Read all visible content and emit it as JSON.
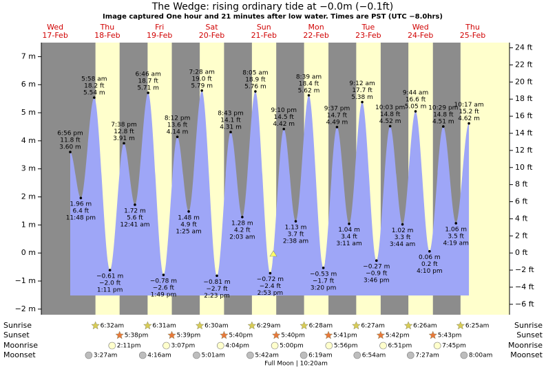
{
  "chart_data": {
    "type": "tide",
    "title": "The Wedge: rising  ordinary tide at −0.0m (−0.1ft)",
    "subtitle": "Image captured One hour and 21 minutes after low water. Times are PST (UTC −8.0hrs)",
    "ylim": [
      -2.2,
      7.5
    ],
    "yticks": [
      {
        "value": -2,
        "label": "−2 m"
      },
      {
        "value": -1,
        "label": "−1 m"
      },
      {
        "value": 0,
        "label": "0 m"
      },
      {
        "value": 1,
        "label": "1 m"
      },
      {
        "value": 2,
        "label": "2 m"
      },
      {
        "value": 3,
        "label": "3 m"
      },
      {
        "value": 4,
        "label": "4 m"
      },
      {
        "value": 5,
        "label": "5 m"
      },
      {
        "value": 6,
        "label": "6 m"
      },
      {
        "value": 7,
        "label": "7 m"
      }
    ],
    "y2lim": [
      -7.22,
      24.61
    ],
    "y2ticks": [
      {
        "value": -6,
        "label": "−6 ft"
      },
      {
        "value": -4,
        "label": "−4 ft"
      },
      {
        "value": -2,
        "label": "−2 ft"
      },
      {
        "value": 0,
        "label": "0 ft"
      },
      {
        "value": 2,
        "label": "2 ft"
      },
      {
        "value": 4,
        "label": "4 ft"
      },
      {
        "value": 6,
        "label": "6 ft"
      },
      {
        "value": 8,
        "label": "8 ft"
      },
      {
        "value": 10,
        "label": "10 ft"
      },
      {
        "value": 12,
        "label": "12 ft"
      },
      {
        "value": 14,
        "label": "14 ft"
      },
      {
        "value": 16,
        "label": "16 ft"
      },
      {
        "value": 18,
        "label": "18 ft"
      },
      {
        "value": 20,
        "label": "20 ft"
      },
      {
        "value": 22,
        "label": "22 ft"
      },
      {
        "value": 24,
        "label": "24 ft"
      }
    ],
    "tide_color": "#9ea6f7",
    "day_color": "#ffffcc",
    "night_color": "#8c8c8c",
    "row_labels": [
      "Sunrise",
      "Sunset",
      "Moonrise",
      "Moonset"
    ],
    "footer": "Full Moon | 10:20am",
    "days": [
      {
        "name": "Wed",
        "date": "17-Feb",
        "tides": [
          {
            "time": "6:56 pm",
            "m": 3.6,
            "m_label": "3.60 m",
            "ft": 11.8,
            "ft_label": "11.8 ft"
          },
          {
            "time": "11:48 pm",
            "m": 1.96,
            "m_label": "1.96 m",
            "ft": 6.4,
            "ft_label": "6.4 ft"
          }
        ]
      },
      {
        "name": "Thu",
        "date": "18-Feb",
        "sunrise": "6:32am",
        "sunset": "5:38pm",
        "moonrise": "2:11pm",
        "moonset": "3:27am",
        "tides": [
          {
            "time": "5:58 am",
            "m": 5.54,
            "m_label": "5.54 m",
            "ft": 18.2,
            "ft_label": "18.2 ft"
          },
          {
            "time": "1:11 pm",
            "m": -0.61,
            "m_label": "−0.61 m",
            "ft": -2.0,
            "ft_label": "−2.0 ft"
          },
          {
            "time": "7:38 pm",
            "m": 3.91,
            "m_label": "3.91 m",
            "ft": 12.8,
            "ft_label": "12.8 ft"
          }
        ]
      },
      {
        "name": "Fri",
        "date": "19-Feb",
        "sunrise": "6:31am",
        "sunset": "5:39pm",
        "moonrise": "3:07pm",
        "moonset": "4:16am",
        "tides": [
          {
            "time": "12:41 am",
            "m": 1.72,
            "m_label": "1.72 m",
            "ft": 5.6,
            "ft_label": "5.6 ft"
          },
          {
            "time": "6:46 am",
            "m": 5.71,
            "m_label": "5.71 m",
            "ft": 18.7,
            "ft_label": "18.7 ft"
          },
          {
            "time": "1:49 pm",
            "m": -0.78,
            "m_label": "−0.78 m",
            "ft": -2.6,
            "ft_label": "−2.6 ft"
          },
          {
            "time": "8:12 pm",
            "m": 4.14,
            "m_label": "4.14 m",
            "ft": 13.6,
            "ft_label": "13.6 ft"
          }
        ]
      },
      {
        "name": "Sat",
        "date": "20-Feb",
        "sunrise": "6:30am",
        "sunset": "5:40pm",
        "moonrise": "4:04pm",
        "moonset": "5:01am",
        "tides": [
          {
            "time": "1:25 am",
            "m": 1.48,
            "m_label": "1.48 m",
            "ft": 4.9,
            "ft_label": "4.9 ft"
          },
          {
            "time": "7:28 am",
            "m": 5.79,
            "m_label": "5.79 m",
            "ft": 19.0,
            "ft_label": "19.0 ft"
          },
          {
            "time": "2:23 pm",
            "m": -0.81,
            "m_label": "−0.81 m",
            "ft": -2.7,
            "ft_label": "−2.7 ft"
          },
          {
            "time": "8:43 pm",
            "m": 4.31,
            "m_label": "4.31 m",
            "ft": 14.1,
            "ft_label": "14.1 ft"
          }
        ]
      },
      {
        "name": "Sun",
        "date": "21-Feb",
        "sunrise": "6:29am",
        "sunset": "5:40pm",
        "moonrise": "5:00pm",
        "moonset": "5:42am",
        "tides": [
          {
            "time": "2:03 am",
            "m": 1.28,
            "m_label": "1.28 m",
            "ft": 4.2,
            "ft_label": "4.2 ft"
          },
          {
            "time": "8:05 am",
            "m": 5.76,
            "m_label": "5.76 m",
            "ft": 18.9,
            "ft_label": "18.9 ft"
          },
          {
            "time": "2:53 pm",
            "m": -0.72,
            "m_label": "−0.72 m",
            "ft": -2.4,
            "ft_label": "−2.4 ft"
          },
          {
            "time": "9:10 pm",
            "m": 4.42,
            "m_label": "4.42 m",
            "ft": 14.5,
            "ft_label": "14.5 ft"
          }
        ]
      },
      {
        "name": "Mon",
        "date": "22-Feb",
        "sunrise": "6:28am",
        "sunset": "5:41pm",
        "moonrise": "5:56pm",
        "moonset": "6:19am",
        "tides": [
          {
            "time": "2:38 am",
            "m": 1.13,
            "m_label": "1.13 m",
            "ft": 3.7,
            "ft_label": "3.7 ft"
          },
          {
            "time": "8:39 am",
            "m": 5.62,
            "m_label": "5.62 m",
            "ft": 18.4,
            "ft_label": "18.4 ft"
          },
          {
            "time": "3:20 pm",
            "m": -0.53,
            "m_label": "−0.53 m",
            "ft": -1.7,
            "ft_label": "−1.7 ft"
          },
          {
            "time": "9:37 pm",
            "m": 4.49,
            "m_label": "4.49 m",
            "ft": 14.7,
            "ft_label": "14.7 ft"
          }
        ]
      },
      {
        "name": "Tue",
        "date": "23-Feb",
        "sunrise": "6:27am",
        "sunset": "5:42pm",
        "moonrise": "6:51pm",
        "moonset": "6:54am",
        "tides": [
          {
            "time": "3:11 am",
            "m": 1.04,
            "m_label": "1.04 m",
            "ft": 3.4,
            "ft_label": "3.4 ft"
          },
          {
            "time": "9:12 am",
            "m": 5.38,
            "m_label": "5.38 m",
            "ft": 17.7,
            "ft_label": "17.7 ft"
          },
          {
            "time": "3:46 pm",
            "m": -0.27,
            "m_label": "−0.27 m",
            "ft": -0.9,
            "ft_label": "−0.9 ft"
          },
          {
            "time": "10:03 pm",
            "m": 4.52,
            "m_label": "4.52 m",
            "ft": 14.8,
            "ft_label": "14.8 ft"
          }
        ]
      },
      {
        "name": "Wed",
        "date": "24-Feb",
        "sunrise": "6:26am",
        "sunset": "5:43pm",
        "moonrise": "7:45pm",
        "moonset": "7:27am",
        "tides": [
          {
            "time": "3:44 am",
            "m": 1.02,
            "m_label": "1.02 m",
            "ft": 3.3,
            "ft_label": "3.3 ft"
          },
          {
            "time": "9:44 am",
            "m": 5.05,
            "m_label": "5.05 m",
            "ft": 16.6,
            "ft_label": "16.6 ft"
          },
          {
            "time": "4:10 pm",
            "m": 0.06,
            "m_label": "0.06 m",
            "ft": 0.2,
            "ft_label": "0.2 ft"
          },
          {
            "time": "10:29 pm",
            "m": 4.51,
            "m_label": "4.51 m",
            "ft": 14.8,
            "ft_label": "14.8 ft"
          }
        ]
      },
      {
        "name": "Thu",
        "date": "25-Feb",
        "sunrise": "6:25am",
        "moonset": "8:00am",
        "tides": [
          {
            "time": "4:19 am",
            "m": 1.06,
            "m_label": "1.06 m",
            "ft": 3.5,
            "ft_label": "3.5 ft"
          },
          {
            "time": "10:17 am",
            "m": 4.62,
            "m_label": "4.62 m",
            "ft": 15.2,
            "ft_label": "15.2 ft"
          }
        ]
      }
    ]
  }
}
